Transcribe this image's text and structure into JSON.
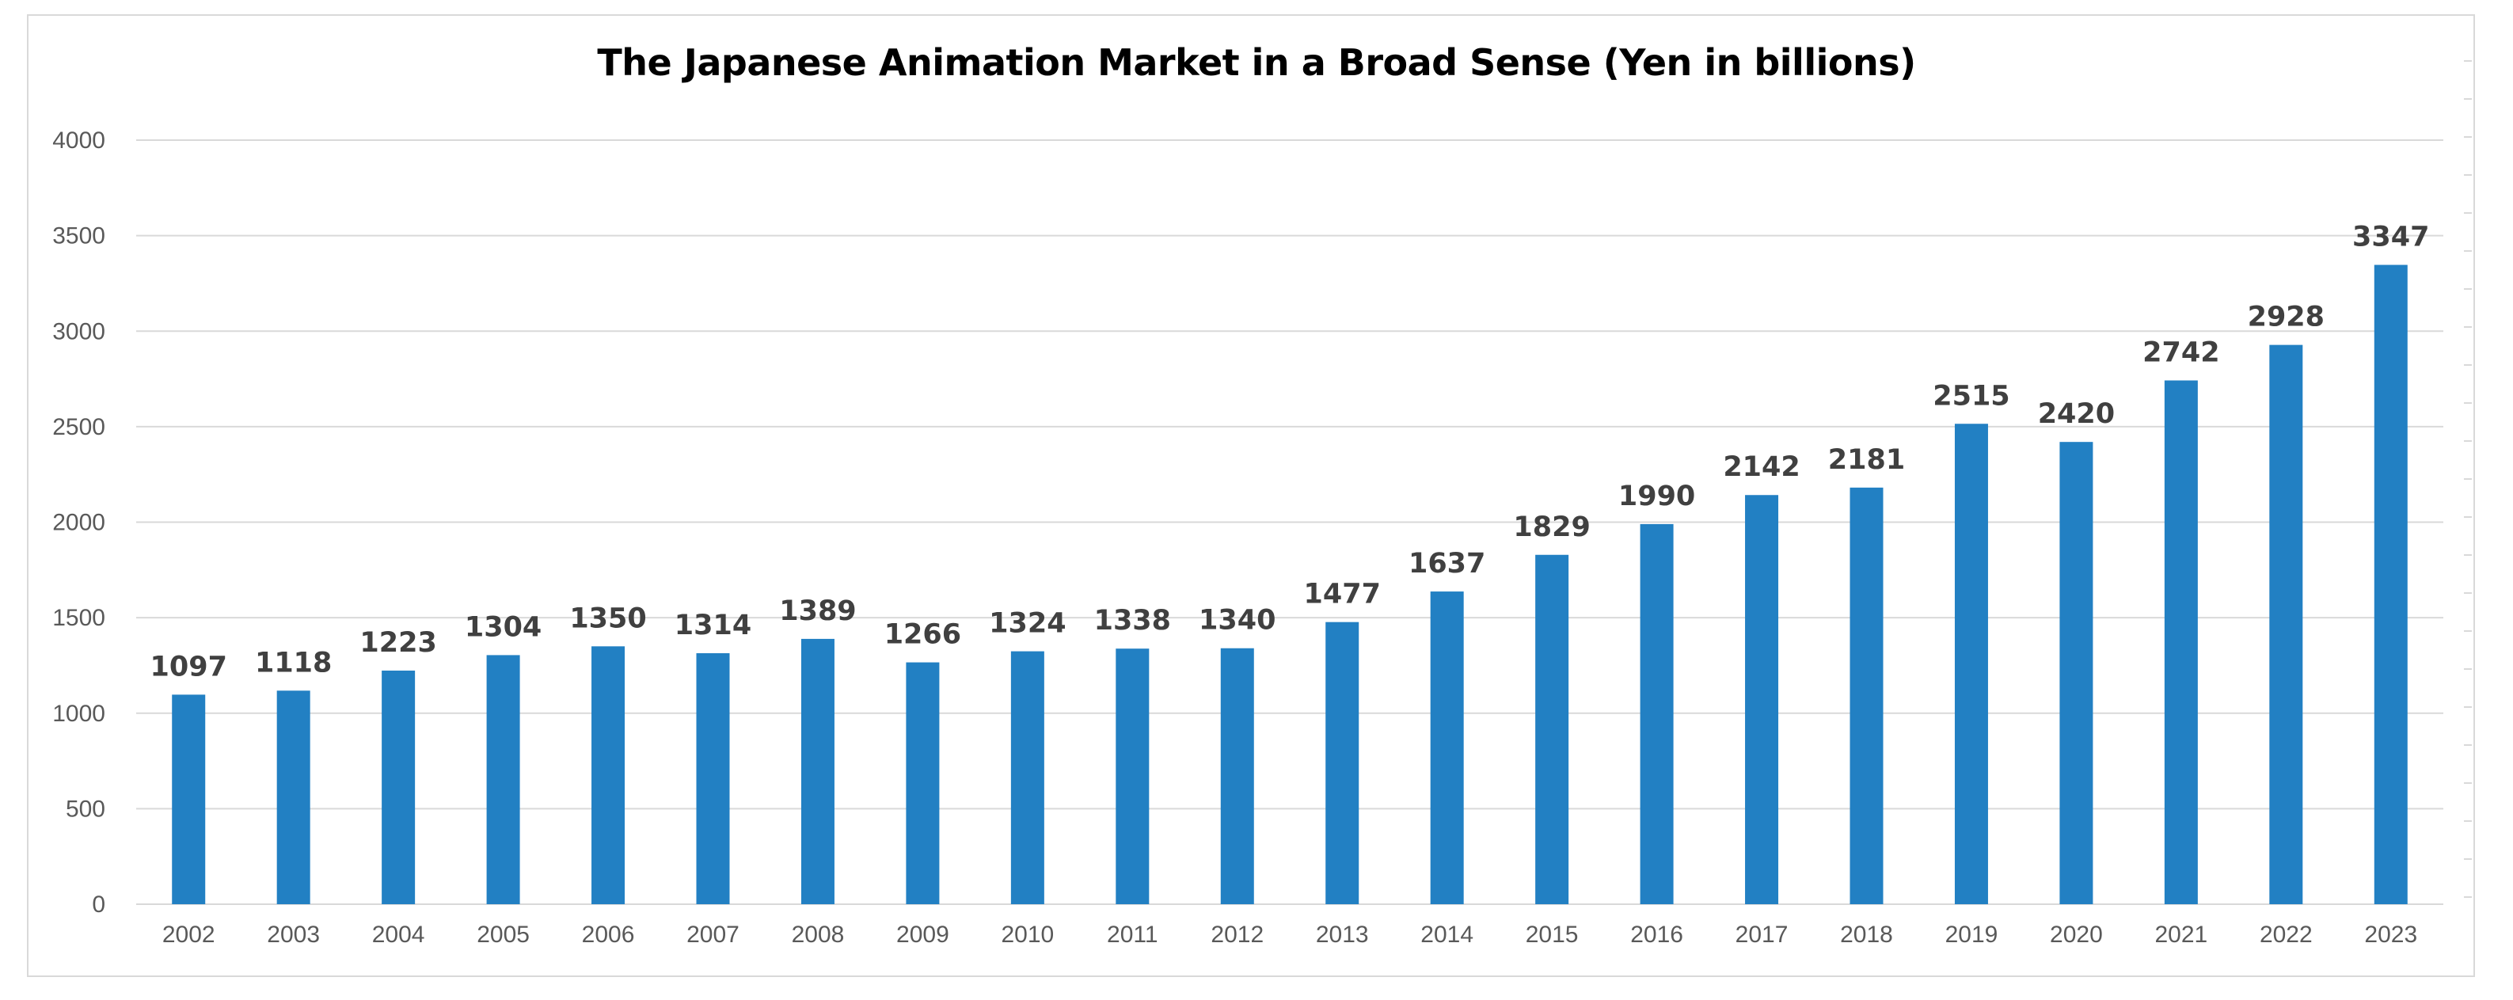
{
  "chart_data": {
    "type": "bar",
    "title": "The Japanese Animation Market in a Broad Sense (Yen in billions)",
    "xlabel": "",
    "ylabel": "",
    "categories": [
      "2002",
      "2003",
      "2004",
      "2005",
      "2006",
      "2007",
      "2008",
      "2009",
      "2010",
      "2011",
      "2012",
      "2013",
      "2014",
      "2015",
      "2016",
      "2017",
      "2018",
      "2019",
      "2020",
      "2021",
      "2022",
      "2023"
    ],
    "values": [
      1097,
      1118,
      1223,
      1304,
      1350,
      1314,
      1389,
      1266,
      1324,
      1338,
      1340,
      1477,
      1637,
      1829,
      1990,
      2142,
      2181,
      2515,
      2420,
      2742,
      2928,
      3347
    ],
    "data_labels": [
      "1097",
      "1118",
      "1223",
      "1304",
      "1350",
      "1314",
      "1389",
      "1266",
      "1324",
      "1338",
      "1340",
      "1477",
      "1637",
      "1829",
      "1990",
      "2142",
      "2181",
      "2515",
      "2420",
      "2742",
      "2928",
      "3347"
    ],
    "ylim": [
      0,
      4000
    ],
    "y_ticks": [
      "0",
      "500",
      "1000",
      "1500",
      "2000",
      "2500",
      "3000",
      "3500",
      "4000"
    ],
    "grid": true,
    "legend": "none",
    "colors": {
      "bar": "#2280c3",
      "grid": "#d9d9d9",
      "axis": "#d9d9d9",
      "tick_text": "#595959",
      "label_text": "#404040"
    }
  }
}
